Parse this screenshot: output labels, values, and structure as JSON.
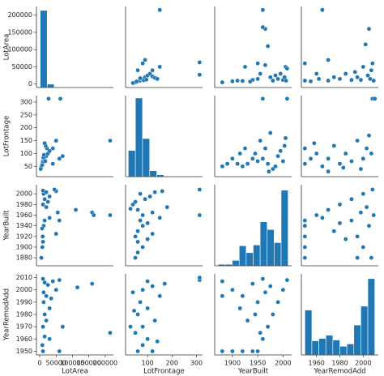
{
  "chart_data": {
    "type": "pairplot",
    "color": "#1f77b4",
    "variables": [
      {
        "label": "LotArea",
        "lim": [
          -10000,
          225000
        ],
        "ticks": [
          0,
          50000,
          100000,
          150000,
          200000
        ]
      },
      {
        "label": "LotFrontage",
        "lim": [
          10,
          325
        ],
        "yticks": [
          50,
          100,
          150,
          200,
          250,
          300
        ],
        "ticks": [
          100,
          200,
          300
        ]
      },
      {
        "label": "YearBuilt",
        "lim": [
          1865,
          2017
        ],
        "yticks": [
          1880,
          1900,
          1920,
          1940,
          1960,
          1980,
          2000
        ],
        "ticks": [
          1900,
          1950,
          2000
        ]
      },
      {
        "label": "YearRemodAdd",
        "lim": [
          1947,
          2013
        ],
        "yticks": [
          1950,
          1960,
          1970,
          1980,
          1990,
          2000,
          2010
        ],
        "ticks": [
          1960,
          1980,
          2000
        ]
      }
    ],
    "panels": [
      {
        "type": "histogram",
        "bins": [
          1300,
          22700,
          44100,
          65500,
          86900,
          108300,
          129700,
          151100,
          172500,
          193900,
          215300
        ],
        "values": [
          1380,
          60,
          8,
          2,
          1,
          1,
          0,
          2,
          3,
          1
        ],
        "ylim": [
          0,
          1450
        ]
      },
      {
        "type": "scatter",
        "x": [
          60,
          65,
          70,
          80,
          75,
          90,
          100,
          110,
          120,
          130,
          150,
          60,
          80,
          90,
          50,
          40,
          120,
          140,
          313,
          313,
          150,
          85,
          95,
          70,
          55
        ],
        "y": [
          8000,
          9000,
          10000,
          12000,
          15000,
          20000,
          25000,
          30000,
          22000,
          18000,
          50000,
          40000,
          60000,
          70000,
          5000,
          3000,
          40000,
          15000,
          63000,
          27000,
          215000,
          11000,
          13000,
          17000,
          7500
        ]
      },
      {
        "type": "scatter",
        "x": [
          1880,
          1900,
          1910,
          1920,
          1925,
          1940,
          1950,
          1955,
          1960,
          1965,
          1960,
          1970,
          1975,
          1950,
          1980,
          1990,
          2000,
          2005,
          2008,
          2003,
          1995,
          2006,
          1935,
          1965,
          1985
        ],
        "y": [
          5000,
          8000,
          10000,
          9000,
          50000,
          12000,
          15000,
          30000,
          215000,
          160000,
          165000,
          110000,
          20000,
          60000,
          10000,
          15000,
          12000,
          50000,
          45000,
          20000,
          30000,
          10000,
          7000,
          55000,
          25000
        ]
      },
      {
        "type": "scatter",
        "x": [
          1950,
          1950,
          1960,
          1965,
          1970,
          1970,
          1980,
          1990,
          1995,
          2000,
          2002,
          2005,
          2007,
          2009,
          1955,
          1975,
          1985,
          1998,
          2004,
          2008,
          1962,
          1993,
          2006
        ],
        "y": [
          60000,
          10000,
          30000,
          215000,
          70000,
          10000,
          15000,
          12000,
          20000,
          50000,
          115000,
          160000,
          40000,
          10000,
          8000,
          20000,
          30000,
          12000,
          25000,
          60000,
          15000,
          35000,
          15000
        ]
      },
      {
        "type": "scatter",
        "x": [
          8000,
          9000,
          10000,
          12000,
          15000,
          20000,
          25000,
          30000,
          22000,
          18000,
          50000,
          40000,
          60000,
          70000,
          5000,
          3000,
          40000,
          15000,
          63000,
          27000,
          215000,
          11000,
          13000,
          17000,
          7500
        ],
        "y": [
          60,
          65,
          70,
          80,
          75,
          90,
          100,
          110,
          120,
          130,
          150,
          60,
          80,
          90,
          50,
          40,
          120,
          140,
          313,
          313,
          150,
          85,
          95,
          70,
          55
        ]
      },
      {
        "type": "histogram",
        "bins": [
          21,
          50.2,
          79.4,
          108.6,
          137.8,
          167,
          196.2,
          225.4,
          254.6,
          283.8,
          313
        ],
        "values": [
          110,
          330,
          160,
          25,
          8,
          2,
          0,
          0,
          0,
          2
        ],
        "ylim": [
          0,
          340
        ]
      },
      {
        "type": "scatter",
        "x": [
          1880,
          1890,
          1900,
          1910,
          1915,
          1920,
          1925,
          1930,
          1940,
          1945,
          1950,
          1955,
          1960,
          1965,
          1970,
          1975,
          1980,
          1990,
          1995,
          2000,
          2005,
          2008,
          1960,
          2003,
          1972,
          1985
        ],
        "y": [
          50,
          60,
          80,
          60,
          100,
          50,
          120,
          60,
          80,
          100,
          70,
          150,
          80,
          120,
          60,
          180,
          40,
          90,
          110,
          70,
          160,
          313,
          313,
          130,
          30,
          50
        ]
      },
      {
        "type": "scatter",
        "x": [
          1950,
          1950,
          1955,
          1960,
          1965,
          1970,
          1975,
          1980,
          1985,
          1990,
          1995,
          2000,
          2005,
          2008,
          2010,
          1970,
          1998,
          2007,
          2003,
          1958,
          1983
        ],
        "y": [
          60,
          120,
          80,
          100,
          50,
          80,
          130,
          60,
          100,
          70,
          150,
          80,
          170,
          313,
          313,
          30,
          40,
          100,
          120,
          140,
          45
        ]
      },
      {
        "type": "scatter",
        "x": [
          5000,
          8000,
          10000,
          9000,
          50000,
          12000,
          15000,
          30000,
          215000,
          160000,
          165000,
          110000,
          20000,
          60000,
          10000,
          15000,
          12000,
          50000,
          45000,
          20000,
          30000,
          10000,
          7000,
          55000,
          25000
        ],
        "y": [
          1880,
          1900,
          1910,
          1920,
          1925,
          1940,
          1950,
          1955,
          1960,
          1965,
          1960,
          1970,
          1975,
          1950,
          1980,
          1990,
          2000,
          2005,
          2008,
          2003,
          1995,
          2006,
          1935,
          1965,
          1985
        ]
      },
      {
        "type": "scatter",
        "x": [
          50,
          60,
          80,
          60,
          100,
          50,
          120,
          60,
          80,
          100,
          70,
          150,
          80,
          120,
          60,
          180,
          40,
          90,
          110,
          70,
          160,
          313,
          313,
          130,
          30,
          50
        ],
        "y": [
          1880,
          1890,
          1900,
          1910,
          1915,
          1920,
          1925,
          1930,
          1940,
          1945,
          1950,
          1955,
          1960,
          1965,
          1970,
          1975,
          1980,
          1990,
          1995,
          2000,
          2005,
          2008,
          1960,
          2003,
          1972,
          1985
        ]
      },
      {
        "type": "histogram",
        "bins": [
          1872,
          1885.8,
          1899.6,
          1913.4,
          1927.2,
          1941,
          1954.8,
          1968.6,
          1982.4,
          1996.2,
          2010
        ],
        "values": [
          2,
          2,
          7,
          26,
          17,
          27,
          57,
          47,
          30,
          98
        ],
        "ylim": [
          0,
          105
        ]
      },
      {
        "type": "scatter",
        "x": [
          1950,
          1950,
          1950,
          1950,
          1950,
          1960,
          1970,
          1980,
          1990,
          2000,
          2008,
          1995,
          2000,
          2005,
          1990,
          1975,
          1985,
          2007,
          1965,
          1998,
          2003,
          1980,
          1995,
          2009
        ],
        "y": [
          1880,
          1900,
          1920,
          1940,
          1950,
          1960,
          1970,
          1980,
          1990,
          2000,
          2008,
          1920,
          1900,
          1940,
          1950,
          1930,
          1915,
          1880,
          1955,
          1965,
          1975,
          1945,
          1880,
          1960
        ]
      },
      {
        "type": "scatter",
        "x": [
          60000,
          10000,
          30000,
          215000,
          70000,
          10000,
          15000,
          12000,
          20000,
          50000,
          115000,
          160000,
          40000,
          10000,
          8000,
          20000,
          30000,
          12000,
          25000,
          60000,
          15000,
          35000,
          15000
        ],
        "y": [
          1950,
          1950,
          1960,
          1965,
          1970,
          1970,
          1980,
          1990,
          1995,
          2000,
          2002,
          2005,
          2007,
          2009,
          1955,
          1975,
          1985,
          1998,
          2004,
          2008,
          1962,
          1993,
          2006
        ]
      },
      {
        "type": "scatter",
        "x": [
          60,
          120,
          80,
          100,
          50,
          80,
          130,
          60,
          100,
          70,
          150,
          80,
          170,
          313,
          313,
          30,
          40,
          100,
          120,
          140,
          45
        ],
        "y": [
          1950,
          1950,
          1955,
          1960,
          1965,
          1970,
          1975,
          1980,
          1985,
          1990,
          1995,
          2000,
          2005,
          2008,
          2010,
          1970,
          1998,
          2007,
          2003,
          1958,
          1983
        ]
      },
      {
        "type": "scatter",
        "x": [
          1880,
          1900,
          1920,
          1940,
          1950,
          1960,
          1970,
          1980,
          1990,
          2000,
          2008,
          1920,
          1900,
          1940,
          1950,
          1930,
          1915,
          1880,
          1955,
          1965,
          1975,
          1945,
          1880,
          1960
        ],
        "y": [
          1950,
          1950,
          1950,
          1950,
          1950,
          1960,
          1970,
          1980,
          1990,
          2000,
          2008,
          1995,
          2000,
          2005,
          1990,
          1975,
          1985,
          2007,
          1965,
          1998,
          2003,
          1980,
          1995,
          2009
        ]
      },
      {
        "type": "histogram",
        "bins": [
          1950,
          1956,
          1962,
          1968,
          1974,
          1980,
          1986,
          1992,
          1998,
          2004,
          2010
        ],
        "values": [
          57,
          18,
          21,
          25,
          19,
          11,
          14,
          38,
          62,
          97
        ],
        "ylim": [
          0,
          103
        ]
      }
    ]
  }
}
